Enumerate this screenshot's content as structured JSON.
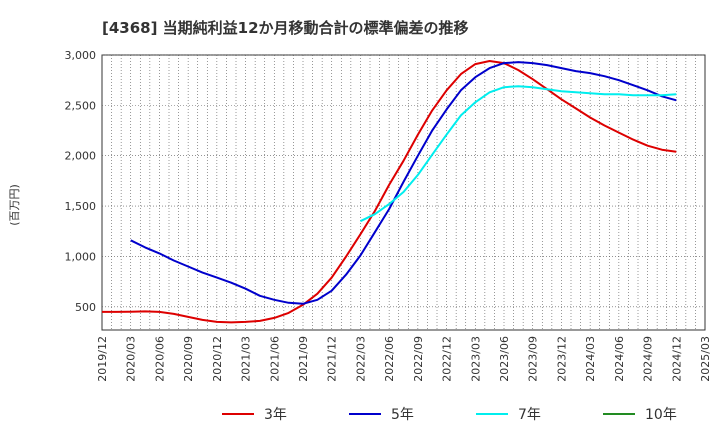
{
  "chart_data": {
    "type": "line",
    "title": "[4368]  当期純利益12か月移動合計の標準偏差の推移",
    "ylabel": "(百万円)",
    "ylim": [
      270,
      3000
    ],
    "yticks": [
      500,
      1000,
      1500,
      2000,
      2500,
      3000
    ],
    "ytick_labels": [
      "500",
      "1,000",
      "1,500",
      "2,000",
      "2,500",
      "3,000"
    ],
    "x_labels": [
      "2019/12",
      "2020/03",
      "2020/06",
      "2020/09",
      "2020/12",
      "2021/03",
      "2021/06",
      "2021/09",
      "2021/12",
      "2022/03",
      "2022/06",
      "2022/09",
      "2022/12",
      "2023/03",
      "2023/06",
      "2023/09",
      "2023/12",
      "2024/03",
      "2024/06",
      "2024/09",
      "2024/12",
      "2025/03"
    ],
    "grid": true,
    "legend_position": "bottom",
    "series": [
      {
        "name": "3年",
        "color": "#dd0000",
        "points": [
          [
            0,
            450
          ],
          [
            0.5,
            450
          ],
          [
            1,
            452
          ],
          [
            1.5,
            455
          ],
          [
            2,
            450
          ],
          [
            2.5,
            430
          ],
          [
            3,
            400
          ],
          [
            3.5,
            370
          ],
          [
            4,
            350
          ],
          [
            4.5,
            345
          ],
          [
            5,
            350
          ],
          [
            5.5,
            360
          ],
          [
            6,
            390
          ],
          [
            6.5,
            440
          ],
          [
            7,
            520
          ],
          [
            7.5,
            630
          ],
          [
            8,
            790
          ],
          [
            8.5,
            1000
          ],
          [
            9,
            1220
          ],
          [
            9.5,
            1450
          ],
          [
            10,
            1710
          ],
          [
            10.5,
            1950
          ],
          [
            11,
            2210
          ],
          [
            11.5,
            2450
          ],
          [
            12,
            2650
          ],
          [
            12.5,
            2810
          ],
          [
            13,
            2910
          ],
          [
            13.5,
            2940
          ],
          [
            14,
            2920
          ],
          [
            14.5,
            2850
          ],
          [
            15,
            2760
          ],
          [
            15.5,
            2660
          ],
          [
            16,
            2560
          ],
          [
            16.5,
            2470
          ],
          [
            17,
            2380
          ],
          [
            17.5,
            2300
          ],
          [
            18,
            2230
          ],
          [
            18.5,
            2160
          ],
          [
            19,
            2100
          ],
          [
            19.5,
            2060
          ],
          [
            20,
            2040
          ]
        ]
      },
      {
        "name": "5年",
        "color": "#0000cc",
        "points": [
          [
            1,
            1160
          ],
          [
            1.5,
            1090
          ],
          [
            2,
            1030
          ],
          [
            2.5,
            960
          ],
          [
            3,
            900
          ],
          [
            3.5,
            840
          ],
          [
            4,
            790
          ],
          [
            4.5,
            740
          ],
          [
            5,
            680
          ],
          [
            5.5,
            610
          ],
          [
            6,
            570
          ],
          [
            6.5,
            540
          ],
          [
            7,
            530
          ],
          [
            7.5,
            570
          ],
          [
            8,
            660
          ],
          [
            8.5,
            820
          ],
          [
            9,
            1010
          ],
          [
            9.5,
            1240
          ],
          [
            10,
            1470
          ],
          [
            10.5,
            1740
          ],
          [
            11,
            2000
          ],
          [
            11.5,
            2250
          ],
          [
            12,
            2460
          ],
          [
            12.5,
            2650
          ],
          [
            13,
            2780
          ],
          [
            13.5,
            2870
          ],
          [
            14,
            2920
          ],
          [
            14.5,
            2930
          ],
          [
            15,
            2920
          ],
          [
            15.5,
            2900
          ],
          [
            16,
            2870
          ],
          [
            16.5,
            2840
          ],
          [
            17,
            2820
          ],
          [
            17.5,
            2790
          ],
          [
            18,
            2750
          ],
          [
            18.5,
            2700
          ],
          [
            19,
            2650
          ],
          [
            19.5,
            2590
          ],
          [
            20,
            2550
          ]
        ]
      },
      {
        "name": "7年",
        "color": "#00eeee",
        "points": [
          [
            9,
            1350
          ],
          [
            9.5,
            1420
          ],
          [
            10,
            1520
          ],
          [
            10.5,
            1640
          ],
          [
            11,
            1810
          ],
          [
            11.5,
            2010
          ],
          [
            12,
            2210
          ],
          [
            12.5,
            2400
          ],
          [
            13,
            2530
          ],
          [
            13.5,
            2630
          ],
          [
            14,
            2680
          ],
          [
            14.5,
            2690
          ],
          [
            15,
            2680
          ],
          [
            15.5,
            2660
          ],
          [
            16,
            2640
          ],
          [
            16.5,
            2630
          ],
          [
            17,
            2620
          ],
          [
            17.5,
            2610
          ],
          [
            18,
            2610
          ],
          [
            18.5,
            2600
          ],
          [
            19,
            2600
          ],
          [
            19.5,
            2600
          ],
          [
            20,
            2610
          ]
        ]
      },
      {
        "name": "10年",
        "color": "#228b22",
        "points": []
      }
    ]
  }
}
